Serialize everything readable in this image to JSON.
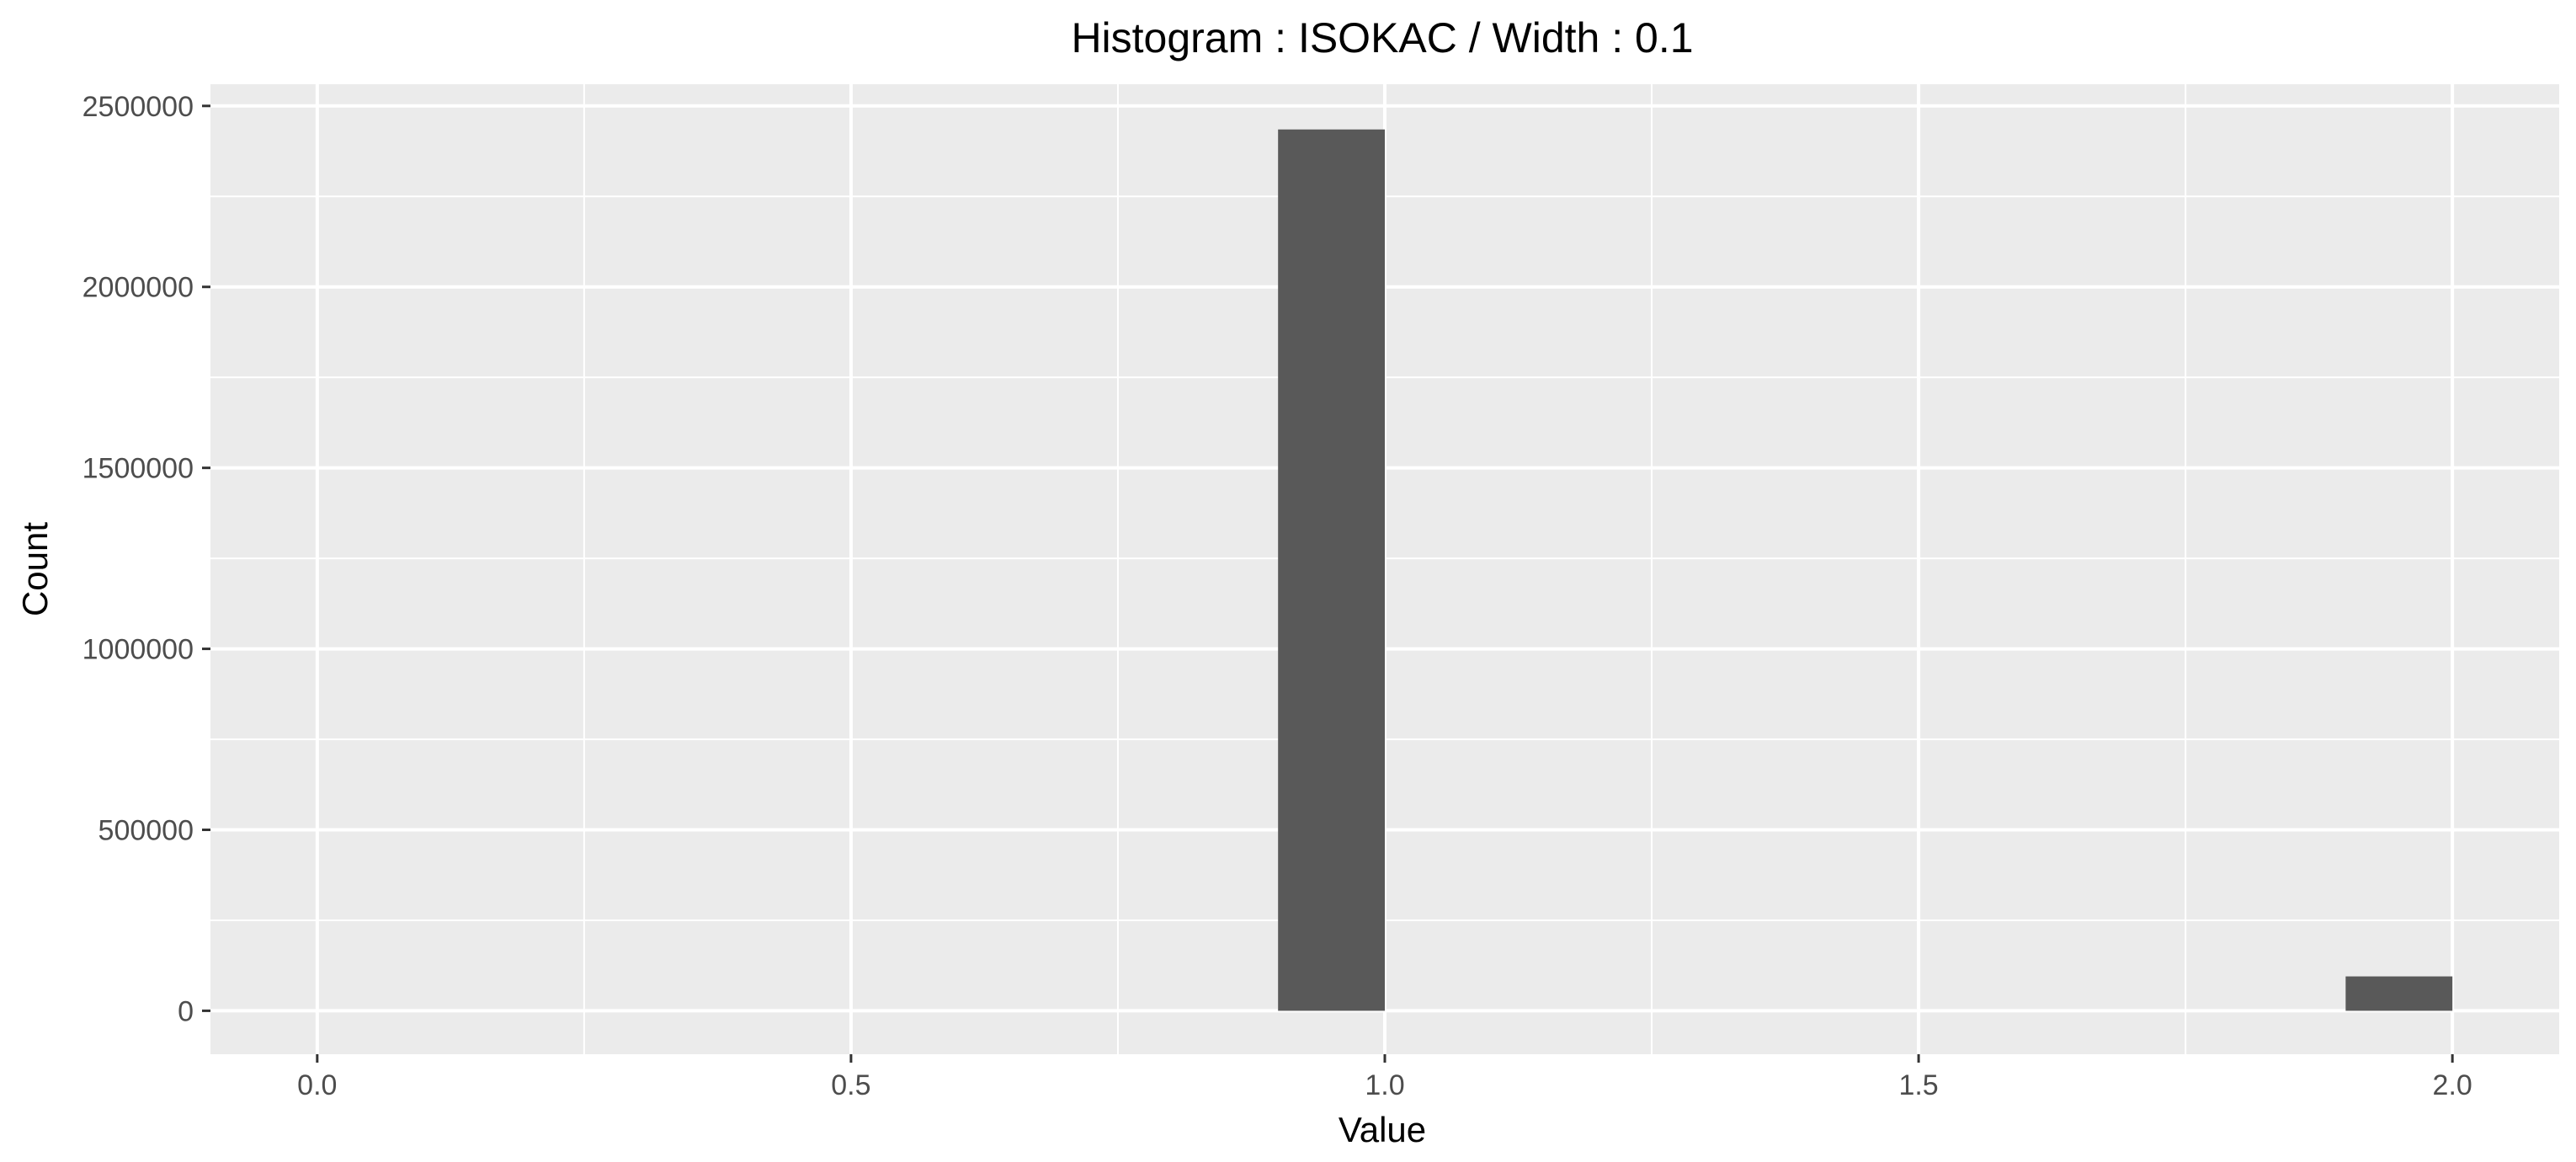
{
  "chart_data": {
    "type": "bar",
    "title": "Histogram : ISOKAC / Width : 0.1",
    "xlabel": "Value",
    "ylabel": "Count",
    "xlim": [
      -0.1,
      2.1
    ],
    "ylim": [
      -120000,
      2560000
    ],
    "x_ticks": [
      0.0,
      0.5,
      1.0,
      1.5,
      2.0
    ],
    "x_tick_labels": [
      "0.0",
      "0.5",
      "1.0",
      "1.5",
      "2.0"
    ],
    "y_ticks": [
      0,
      500000,
      1000000,
      1500000,
      2000000,
      2500000
    ],
    "y_tick_labels": [
      "0",
      "500000",
      "1000000",
      "1500000",
      "2000000",
      "2500000"
    ],
    "bin_width": 0.1,
    "bins": [
      {
        "x0": 0.9,
        "x1": 1.0,
        "value": 2435000
      },
      {
        "x0": 1.9,
        "x1": 2.0,
        "value": 95000
      }
    ],
    "grid": true,
    "legend": "none",
    "colors": {
      "panel": "#ebebeb",
      "grid": "#ffffff",
      "bar": "#595959",
      "tick": "#333333"
    }
  }
}
